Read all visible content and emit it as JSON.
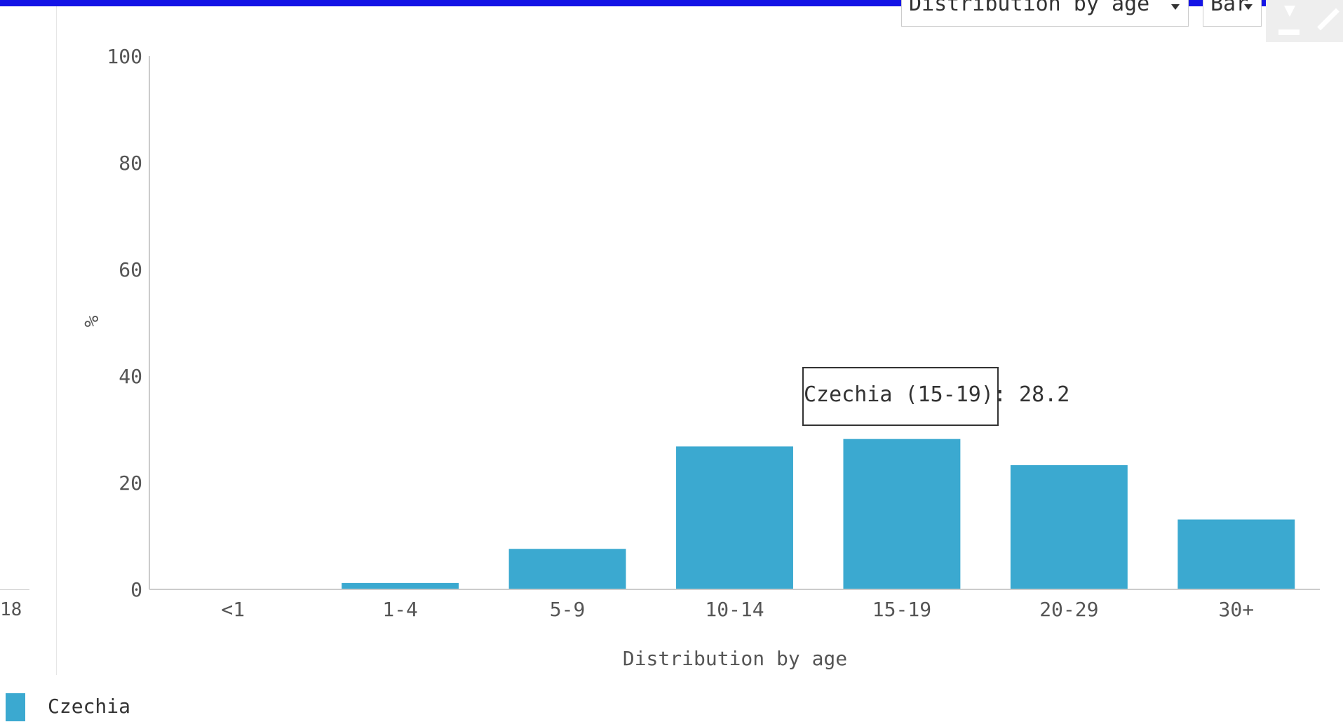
{
  "controls": {
    "indicator_select": "Distribution by age",
    "chart_type_select": "Bar"
  },
  "left_panel": {
    "tick": "18"
  },
  "tooltip": {
    "text": "Czechia (15-19): 28.2"
  },
  "legend": {
    "label": "Czechia",
    "color": "#3ba9d0"
  },
  "chart_data": {
    "type": "bar",
    "title": "",
    "xlabel": "Distribution by age",
    "ylabel": "%",
    "ylim": [
      0,
      100
    ],
    "yticks": [
      0,
      20,
      40,
      60,
      80,
      100
    ],
    "categories": [
      "<1",
      "1-4",
      "5-9",
      "10-14",
      "15-19",
      "20-29",
      "30+"
    ],
    "series": [
      {
        "name": "Czechia",
        "color": "#3ba9d0",
        "values": [
          0,
          1.2,
          7.6,
          26.8,
          28.2,
          23.3,
          13.1
        ]
      }
    ],
    "grid": false,
    "legend_position": "bottom-left"
  }
}
